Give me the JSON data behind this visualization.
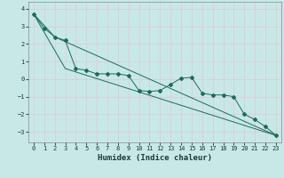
{
  "xlabel": "Humidex (Indice chaleur)",
  "ylabel": "",
  "background_color": "#c8e8e8",
  "grid_color": "#d0e8e0",
  "line_color": "#1a6b5a",
  "xlim": [
    -0.5,
    23.5
  ],
  "ylim": [
    -3.6,
    4.4
  ],
  "yticks": [
    -3,
    -2,
    -1,
    0,
    1,
    2,
    3,
    4
  ],
  "xticks": [
    0,
    1,
    2,
    3,
    4,
    5,
    6,
    7,
    8,
    9,
    10,
    11,
    12,
    13,
    14,
    15,
    16,
    17,
    18,
    19,
    20,
    21,
    22,
    23
  ],
  "line1_x": [
    0,
    1,
    2,
    3,
    4,
    5,
    6,
    7,
    8,
    9,
    10,
    11,
    12,
    13,
    14,
    15,
    16,
    17,
    18,
    19,
    20,
    21,
    22,
    23
  ],
  "line1_y": [
    3.7,
    2.9,
    2.4,
    2.2,
    0.6,
    0.5,
    0.3,
    0.3,
    0.3,
    0.2,
    -0.65,
    -0.7,
    -0.65,
    -0.3,
    0.05,
    0.1,
    -0.8,
    -0.9,
    -0.9,
    -1.0,
    -2.0,
    -2.3,
    -2.7,
    -3.2
  ],
  "line2_x": [
    0,
    2,
    23
  ],
  "line2_y": [
    3.7,
    2.4,
    -3.2
  ],
  "line3_x": [
    0,
    3,
    23
  ],
  "line3_y": [
    3.7,
    0.6,
    -3.2
  ],
  "xlabel_fontsize": 6.5,
  "tick_fontsize": 5.0
}
